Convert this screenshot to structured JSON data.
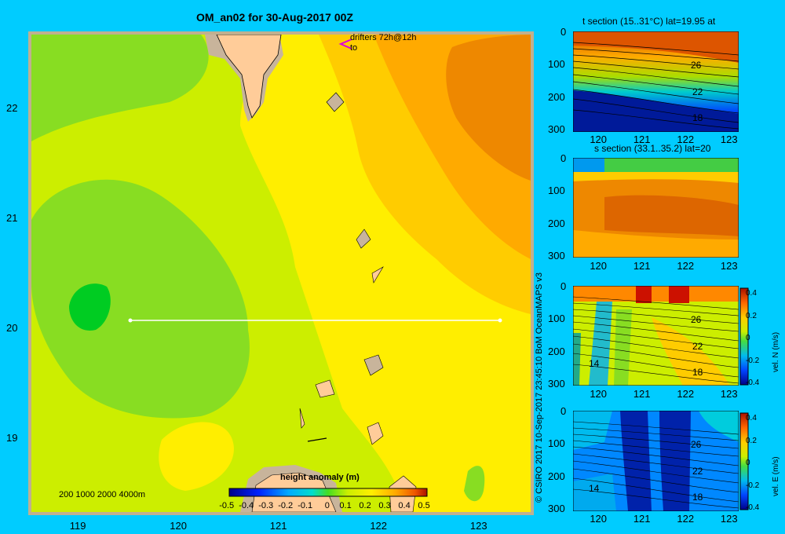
{
  "title": "OM_an02 for 30-Aug-2017 00Z",
  "main_map": {
    "y_ticks": [
      "22",
      "21",
      "20",
      "19"
    ],
    "x_ticks": [
      "119",
      "120",
      "121",
      "122",
      "123"
    ],
    "drifters_label": "drifters 72h@12h",
    "drifters_to": "to",
    "depth_legend": "200  1000  2000  4000m",
    "colorbar_title": "height anomaly (m)",
    "colorbar_ticks": [
      "-0.5",
      "-0.4",
      "-0.3",
      "-0.2",
      "-0.1",
      "0",
      "0.1",
      "0.2",
      "0.3",
      "0.4",
      "0.5"
    ],
    "section_line": {
      "lat": 20,
      "lon_start": 119.5,
      "lon_end": 123.2
    },
    "colors": {
      "land": "#ffcc99",
      "shelf": "#c8b49b",
      "frame": "#c0b090"
    }
  },
  "panels": [
    {
      "title": "t section (15..31°C) lat=19.95 at",
      "y_ticks": [
        "0",
        "100",
        "200",
        "300"
      ],
      "x_ticks": [
        "120",
        "121",
        "122",
        "123"
      ],
      "contour_labels": [
        "26",
        "22",
        "18"
      ]
    },
    {
      "title": "s section (33.1..35.2) lat=20",
      "y_ticks": [
        "0",
        "100",
        "200",
        "300"
      ],
      "x_ticks": [
        "120",
        "121",
        "122",
        "123"
      ],
      "contour_labels": []
    },
    {
      "title": "",
      "y_ticks": [
        "0",
        "100",
        "200",
        "300"
      ],
      "x_ticks": [
        "120",
        "121",
        "122",
        "123"
      ],
      "contour_labels": [
        "26",
        "22",
        "18",
        "14"
      ],
      "colorbar_ticks": [
        "0.4",
        "0.2",
        "0",
        "-0.2",
        "-0.4"
      ],
      "colorbar_label": "vel. N (m/s)"
    },
    {
      "title": "",
      "y_ticks": [
        "0",
        "100",
        "200",
        "300"
      ],
      "x_ticks": [
        "120",
        "121",
        "122",
        "123"
      ],
      "contour_labels": [
        "26",
        "22",
        "18",
        "14"
      ],
      "colorbar_ticks": [
        "0.4",
        "0.2",
        "0",
        "-0.2",
        "-0.4"
      ],
      "colorbar_label": "vel. E (m/s)"
    }
  ],
  "credit": "© CSIRO 2017   10-Sep-2017 23:45:10 BoM OceanMAPS v3"
}
